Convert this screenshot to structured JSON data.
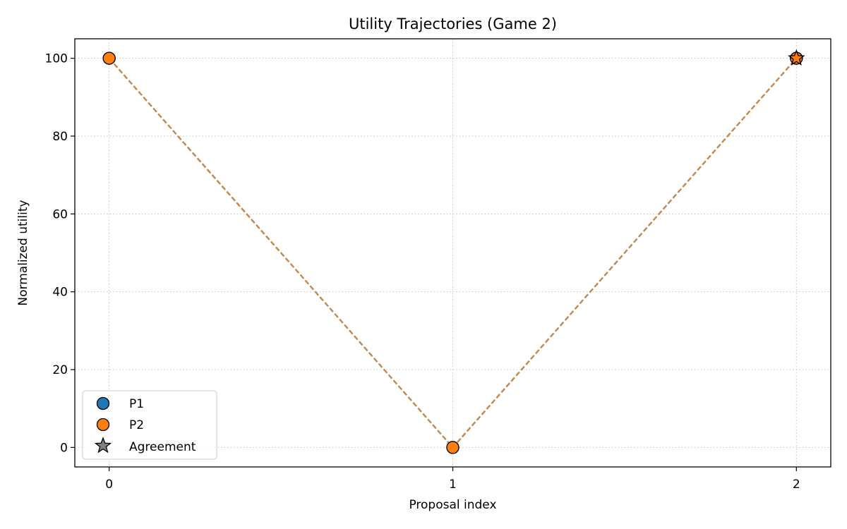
{
  "chart_data": {
    "type": "line",
    "title": "Utility Trajectories (Game 2)",
    "xlabel": "Proposal index",
    "ylabel": "Normalized utility",
    "x": [
      0,
      1,
      2
    ],
    "xticks": [
      "0",
      "1",
      "2"
    ],
    "yticks": [
      "0",
      "20",
      "40",
      "60",
      "80",
      "100"
    ],
    "xlim": [
      -0.1,
      2.1
    ],
    "ylim": [
      -5,
      105
    ],
    "grid": true,
    "legend_position": "lower-left",
    "series": [
      {
        "name": "P1",
        "values": [
          100,
          0,
          100
        ],
        "color": "#1f77b4"
      },
      {
        "name": "P2",
        "values": [
          100,
          0,
          100
        ],
        "color": "#ff7f0e"
      }
    ],
    "agreement": {
      "name": "Agreement",
      "x": 2,
      "y": 100,
      "color": "#808080"
    },
    "line_color": "#c4894f",
    "legend": [
      "P1",
      "P2",
      "Agreement"
    ]
  }
}
